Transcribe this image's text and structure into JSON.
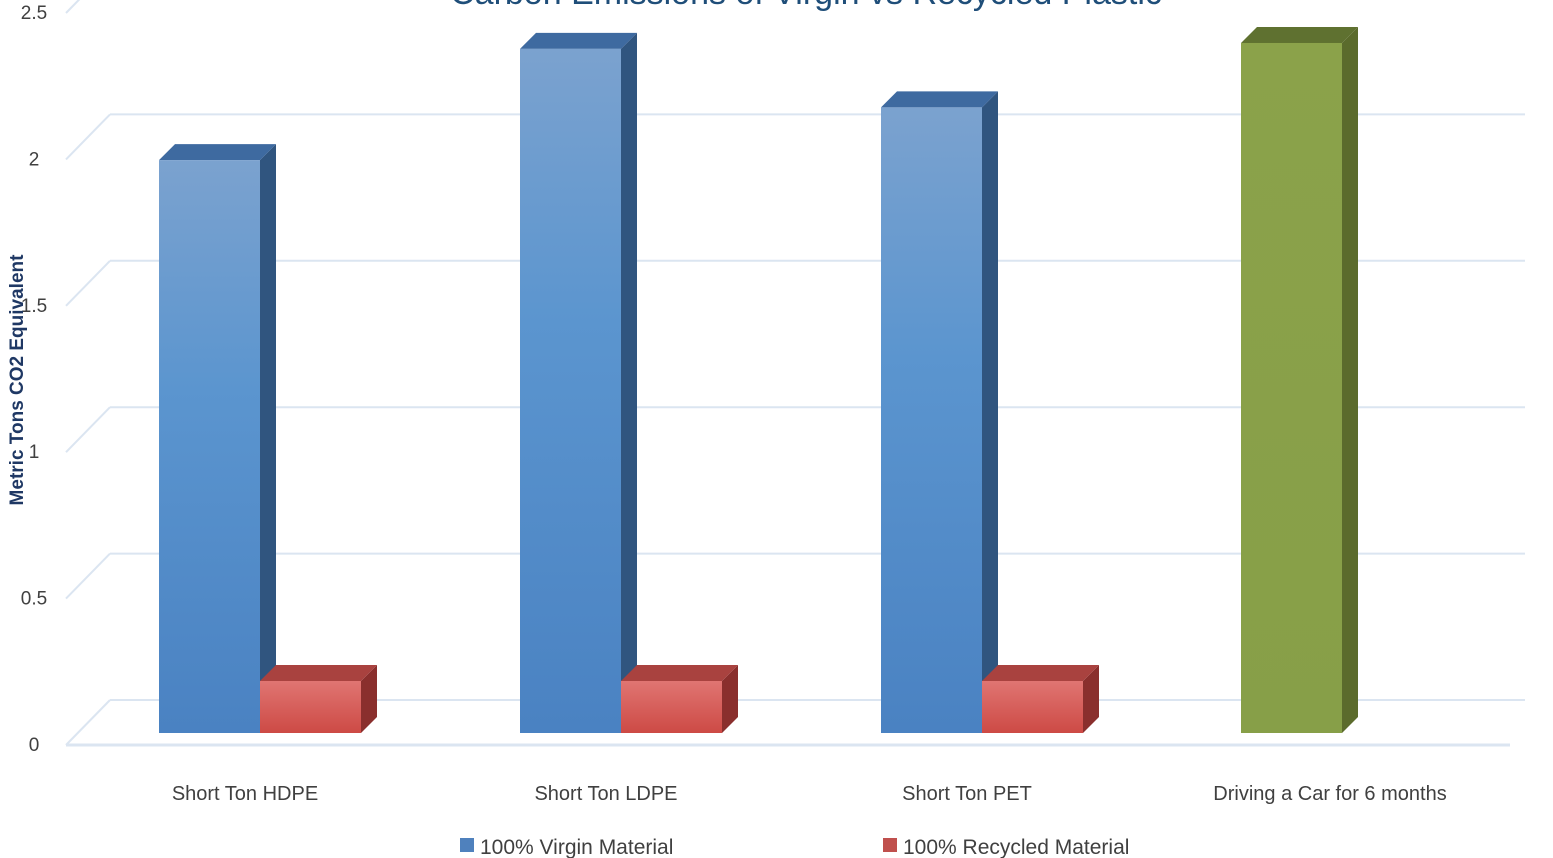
{
  "chart_data": {
    "type": "bar",
    "title": "Carbon Emissions of Virgin vs Recycled Plastic",
    "xlabel": "",
    "ylabel": "Metric Tons CO2 Equivalent",
    "ylim": [
      0,
      2.5
    ],
    "yticks": [
      "0",
      "0.5",
      "1",
      "1.5",
      "2",
      "2.5"
    ],
    "grid": true,
    "legend_position": "bottom",
    "categories": [
      "Short Ton HDPE",
      "Short Ton LDPE",
      "Short Ton PET",
      "Driving a Car for 6 months"
    ],
    "series": [
      {
        "name": "100% Virgin Material",
        "color": "#4f81bd",
        "values": [
          1.96,
          2.34,
          2.14,
          null
        ]
      },
      {
        "name": "100% Recycled Material",
        "color": "#c0504d",
        "values": [
          0.17,
          0.17,
          0.17,
          null
        ]
      }
    ],
    "extra_bar": {
      "category_index": 3,
      "value": 2.36,
      "color": "#8aa04a"
    }
  }
}
